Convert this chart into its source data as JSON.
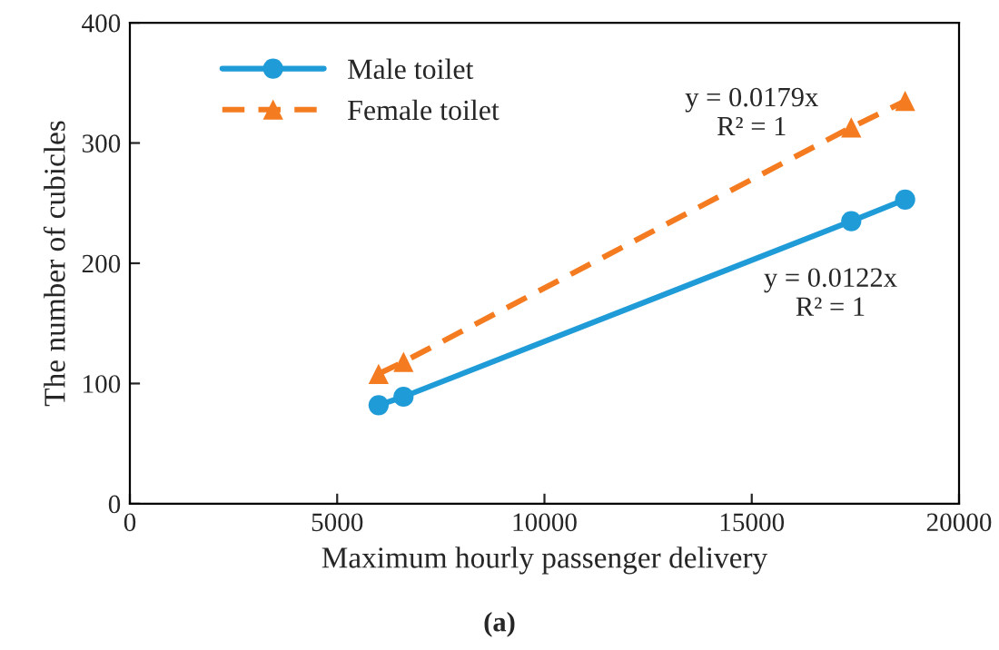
{
  "chart_data": {
    "type": "line",
    "xlabel": "Maximum hourly passenger delivery",
    "ylabel": "The number of cubicles",
    "xlim": [
      0,
      20000
    ],
    "xticks": [
      0,
      5000,
      10000,
      15000,
      20000
    ],
    "ylim": [
      0,
      400
    ],
    "yticks": [
      0,
      100,
      200,
      300,
      400
    ],
    "grid": false,
    "legend": "top left",
    "series": [
      {
        "name": "Male toilet",
        "color": "#1f9bd7",
        "x": [
          6000,
          6600,
          17400,
          18700
        ],
        "values": [
          82,
          89,
          235,
          253
        ],
        "marker": "circle",
        "line_style": "solid"
      },
      {
        "name": "Female toilet",
        "color": "#f47b20",
        "x": [
          6000,
          6600,
          17400,
          18700
        ],
        "values": [
          108,
          118,
          313,
          335
        ],
        "marker": "triangle",
        "line_style": "dashed"
      }
    ],
    "annotations": [
      "y = 0.0179x\nR² = 1",
      "y = 0.0122x\nR² = 1",
      "(a)"
    ]
  }
}
